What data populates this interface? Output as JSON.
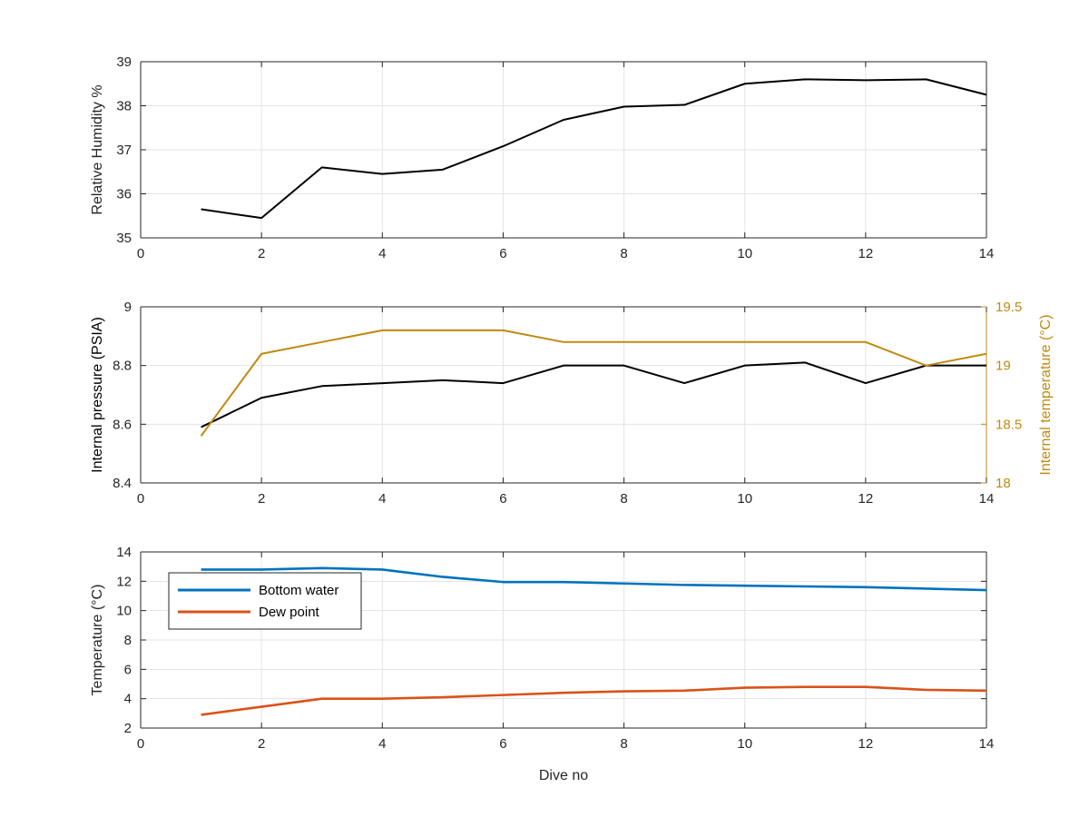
{
  "chart_data": [
    {
      "type": "line",
      "title": "",
      "xlabel": "",
      "ylabel": "Relative Humidity %",
      "xlim": [
        0,
        14
      ],
      "ylim": [
        35,
        39
      ],
      "xticks": [
        "0",
        "2",
        "4",
        "6",
        "8",
        "10",
        "12",
        "14"
      ],
      "yticks": [
        "35",
        "36",
        "37",
        "38",
        "39"
      ],
      "grid": true,
      "x": [
        1,
        2,
        3,
        4,
        5,
        6,
        7,
        8,
        9,
        10,
        11,
        12,
        13,
        14
      ],
      "series": [
        {
          "color": "#000000",
          "values": [
            35.65,
            35.45,
            36.6,
            36.45,
            36.55,
            37.08,
            37.68,
            37.98,
            38.02,
            38.5,
            38.6,
            38.58,
            38.6,
            38.25
          ]
        }
      ]
    },
    {
      "type": "line",
      "title": "",
      "xlabel": "",
      "ylabel": "Internal pressure (PSIA)",
      "y2label": "Internal temperature (°C)",
      "xlim": [
        0,
        14
      ],
      "ylim": [
        8.4,
        9
      ],
      "y2lim": [
        18,
        19.5
      ],
      "xticks": [
        "0",
        "2",
        "4",
        "6",
        "8",
        "10",
        "12",
        "14"
      ],
      "yticks": [
        "8.4",
        "8.6",
        "8.8",
        "9"
      ],
      "y2ticks": [
        "18",
        "18.5",
        "19",
        "19.5"
      ],
      "grid": true,
      "x": [
        1,
        2,
        3,
        4,
        5,
        6,
        7,
        8,
        9,
        10,
        11,
        12,
        13,
        14
      ],
      "series": [
        {
          "axis": "left",
          "color": "#000000",
          "values": [
            8.59,
            8.69,
            8.73,
            8.74,
            8.75,
            8.74,
            8.8,
            8.8,
            8.74,
            8.8,
            8.81,
            8.74,
            8.8,
            8.8
          ]
        },
        {
          "axis": "right",
          "color": "#C08A10",
          "values": [
            18.4,
            19.1,
            19.2,
            19.3,
            19.3,
            19.3,
            19.2,
            19.2,
            19.2,
            19.2,
            19.2,
            19.2,
            19.0,
            19.1
          ]
        }
      ]
    },
    {
      "type": "line",
      "title": "",
      "xlabel": "Dive no",
      "ylabel": "Temperature (°C)",
      "xlim": [
        0,
        14
      ],
      "ylim": [
        2,
        14
      ],
      "xticks": [
        "0",
        "2",
        "4",
        "6",
        "8",
        "10",
        "12",
        "14"
      ],
      "yticks": [
        "2",
        "4",
        "6",
        "8",
        "10",
        "12",
        "14"
      ],
      "grid": true,
      "legend_position": "top-left",
      "x": [
        1,
        2,
        3,
        4,
        5,
        6,
        7,
        8,
        9,
        10,
        11,
        12,
        13,
        14
      ],
      "series": [
        {
          "name": "Bottom water",
          "color": "#0072BD",
          "values": [
            12.8,
            12.8,
            12.9,
            12.8,
            12.3,
            11.95,
            11.95,
            11.85,
            11.75,
            11.7,
            11.65,
            11.6,
            11.5,
            11.4
          ]
        },
        {
          "name": "Dew point",
          "color": "#D95319",
          "values": [
            2.9,
            3.45,
            4.0,
            4.0,
            4.1,
            4.25,
            4.4,
            4.5,
            4.55,
            4.75,
            4.8,
            4.8,
            4.6,
            4.55
          ]
        }
      ]
    }
  ]
}
